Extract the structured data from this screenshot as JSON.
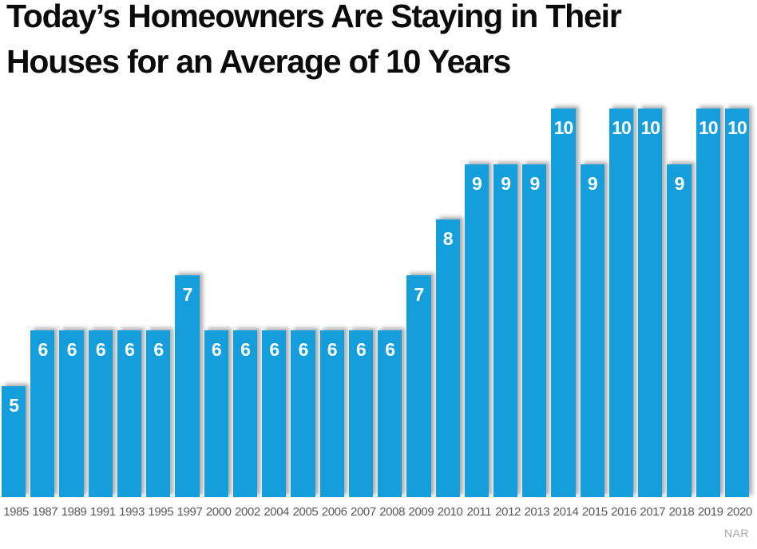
{
  "title": {
    "line1": "Today’s Homeowners Are Staying in Their",
    "line2": "Houses for an Average of 10 Years",
    "full": "Today’s Homeowners Are Staying in Their Houses for an Average of 10 Years"
  },
  "source": {
    "label": "NAR"
  },
  "colors": {
    "bar": "#149EDB",
    "bar_value_text": "#FFFFFF",
    "year_label": "#595959",
    "title_text": "#0B0B0B",
    "source_text": "#A8A8A8",
    "background": "#FFFFFF"
  },
  "chart_data": {
    "type": "bar",
    "title": "Today’s Homeowners Are Staying in Their Houses for an Average of 10 Years",
    "categories": [
      "1985",
      "1987",
      "1989",
      "1991",
      "1993",
      "1995",
      "1997",
      "2000",
      "2002",
      "2004",
      "2005",
      "2006",
      "2007",
      "2008",
      "2009",
      "2010",
      "2011",
      "2012",
      "2013",
      "2014",
      "2015",
      "2016",
      "2017",
      "2018",
      "2019",
      "2020"
    ],
    "values": [
      5,
      6,
      6,
      6,
      6,
      6,
      7,
      6,
      6,
      6,
      6,
      6,
      6,
      6,
      7,
      8,
      9,
      9,
      9,
      10,
      9,
      10,
      10,
      9,
      10,
      10
    ],
    "unit": "years",
    "xlabel": "",
    "ylabel": "",
    "ylim": [
      3,
      10
    ],
    "grid": false,
    "legend": false,
    "data_labels": "inside-top",
    "source_note": "NAR"
  }
}
